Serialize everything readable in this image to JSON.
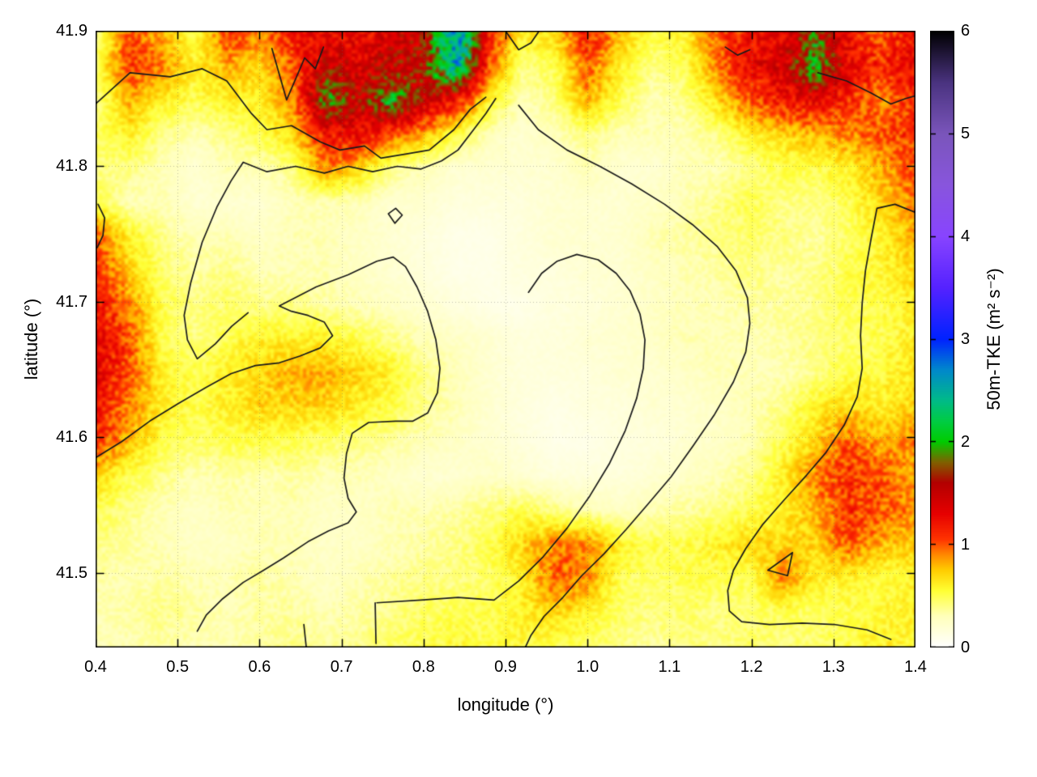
{
  "figure": {
    "xlabel": "longitude (°)",
    "ylabel": "latitude (°)",
    "colorbar_label": "50m-TKE (m² s⁻²)"
  },
  "axes": {
    "x": {
      "min": 0.4,
      "max": 1.4,
      "ticks": [
        0.4,
        0.5,
        0.6,
        0.7,
        0.8,
        0.9,
        1.0,
        1.1,
        1.2,
        1.3,
        1.4
      ],
      "tick_labels": [
        "0.4",
        "0.5",
        "0.6",
        "0.7",
        "0.8",
        "0.9",
        "1.0",
        "1.1",
        "1.2",
        "1.3",
        "1.4"
      ]
    },
    "y": {
      "min": 41.445,
      "max": 41.9,
      "ticks": [
        41.5,
        41.6,
        41.7,
        41.8,
        41.9
      ],
      "tick_labels": [
        "41.5",
        "41.6",
        "41.7",
        "41.8",
        "41.9"
      ]
    },
    "cb": {
      "min": 0,
      "max": 6,
      "ticks": [
        0,
        1,
        2,
        3,
        4,
        5,
        6
      ],
      "tick_labels": [
        "0",
        "1",
        "2",
        "3",
        "4",
        "5",
        "6"
      ]
    }
  },
  "chart_data": {
    "type": "heatmap",
    "title": "",
    "xlabel": "longitude (°)",
    "ylabel": "latitude (°)",
    "colorbar_label": "50m-TKE (m² s⁻²)",
    "x_range": [
      0.4,
      1.4
    ],
    "y_range": [
      41.445,
      41.9
    ],
    "value_range": [
      0,
      6
    ],
    "grid_note": "values rows ordered top (lat 41.9) to bottom (lat 41.445), columns lon 0.4 to 1.4",
    "values": [
      [
        0.4,
        1.0,
        0.8,
        0.5,
        1.1,
        0.9,
        1.2,
        1.3,
        1.2,
        1.4,
        1.5,
        2.8,
        1.2,
        0.6,
        0.7,
        1.2,
        0.8,
        0.5,
        0.6,
        1.0,
        1.2,
        1.3,
        1.8,
        1.2,
        1.0,
        1.2
      ],
      [
        0.5,
        1.1,
        0.9,
        0.6,
        0.8,
        0.7,
        1.0,
        1.5,
        1.4,
        1.5,
        1.6,
        2.5,
        1.0,
        0.4,
        0.5,
        1.0,
        0.6,
        0.4,
        0.5,
        0.9,
        1.3,
        1.4,
        2.0,
        1.3,
        1.1,
        1.3
      ],
      [
        0.4,
        0.8,
        0.6,
        0.5,
        0.6,
        0.6,
        0.9,
        1.9,
        1.5,
        2.0,
        1.5,
        1.2,
        0.6,
        0.3,
        0.4,
        0.8,
        0.5,
        0.3,
        0.4,
        0.7,
        1.0,
        1.2,
        1.3,
        1.1,
        0.9,
        1.1
      ],
      [
        0.5,
        0.6,
        0.4,
        0.3,
        0.4,
        0.5,
        0.7,
        1.2,
        1.3,
        1.0,
        0.8,
        0.5,
        0.3,
        0.2,
        0.3,
        0.4,
        0.3,
        0.3,
        0.3,
        0.4,
        0.6,
        0.7,
        0.8,
        0.9,
        1.0,
        1.1
      ],
      [
        0.4,
        0.4,
        0.3,
        0.2,
        0.3,
        0.3,
        0.4,
        0.9,
        0.7,
        0.4,
        0.3,
        0.2,
        0.2,
        0.2,
        0.2,
        0.3,
        0.2,
        0.2,
        0.3,
        0.3,
        0.4,
        0.5,
        0.5,
        0.6,
        0.8,
        1.0
      ],
      [
        0.5,
        0.3,
        0.3,
        0.2,
        0.2,
        0.2,
        0.3,
        0.3,
        0.3,
        0.2,
        0.2,
        0.15,
        0.15,
        0.15,
        0.2,
        0.2,
        0.2,
        0.25,
        0.3,
        0.4,
        0.5,
        0.4,
        0.4,
        0.5,
        0.7,
        0.9
      ],
      [
        1.0,
        0.6,
        0.4,
        0.3,
        0.3,
        0.25,
        0.3,
        0.3,
        0.25,
        0.2,
        0.15,
        0.1,
        0.1,
        0.15,
        0.2,
        0.2,
        0.2,
        0.3,
        0.35,
        0.4,
        0.45,
        0.4,
        0.35,
        0.45,
        0.6,
        0.8
      ],
      [
        1.1,
        0.7,
        0.45,
        0.35,
        0.4,
        0.3,
        0.3,
        0.3,
        0.25,
        0.2,
        0.15,
        0.1,
        0.1,
        0.15,
        0.15,
        0.2,
        0.2,
        0.25,
        0.3,
        0.35,
        0.4,
        0.35,
        0.4,
        0.5,
        0.55,
        0.7
      ],
      [
        1.2,
        0.9,
        0.5,
        0.4,
        0.45,
        0.4,
        0.4,
        0.35,
        0.3,
        0.25,
        0.2,
        0.15,
        0.1,
        0.1,
        0.15,
        0.15,
        0.2,
        0.25,
        0.3,
        0.3,
        0.35,
        0.35,
        0.4,
        0.5,
        0.5,
        0.6
      ],
      [
        1.3,
        1.0,
        0.5,
        0.4,
        0.5,
        0.6,
        0.6,
        0.6,
        0.5,
        0.4,
        0.3,
        0.25,
        0.2,
        0.15,
        0.15,
        0.2,
        0.2,
        0.25,
        0.3,
        0.3,
        0.3,
        0.35,
        0.4,
        0.45,
        0.5,
        0.6
      ],
      [
        1.3,
        1.0,
        0.6,
        0.5,
        0.6,
        0.7,
        0.8,
        0.8,
        0.7,
        0.6,
        0.4,
        0.3,
        0.2,
        0.15,
        0.15,
        0.15,
        0.2,
        0.2,
        0.25,
        0.3,
        0.3,
        0.3,
        0.4,
        0.5,
        0.55,
        0.65
      ],
      [
        1.2,
        0.9,
        0.6,
        0.5,
        0.6,
        0.7,
        0.7,
        0.7,
        0.6,
        0.5,
        0.4,
        0.3,
        0.2,
        0.15,
        0.1,
        0.15,
        0.15,
        0.2,
        0.2,
        0.25,
        0.3,
        0.4,
        0.6,
        0.7,
        0.6,
        0.7
      ],
      [
        1.1,
        0.8,
        0.5,
        0.45,
        0.5,
        0.5,
        0.5,
        0.45,
        0.4,
        0.35,
        0.3,
        0.25,
        0.2,
        0.15,
        0.1,
        0.1,
        0.15,
        0.15,
        0.2,
        0.25,
        0.3,
        0.5,
        0.7,
        1.0,
        0.8,
        0.9
      ],
      [
        0.7,
        0.5,
        0.4,
        0.3,
        0.35,
        0.3,
        0.35,
        0.3,
        0.3,
        0.25,
        0.2,
        0.2,
        0.25,
        0.2,
        0.15,
        0.15,
        0.15,
        0.2,
        0.25,
        0.3,
        0.4,
        0.6,
        0.9,
        1.1,
        1.0,
        0.8
      ],
      [
        0.5,
        0.4,
        0.3,
        0.25,
        0.3,
        0.3,
        0.3,
        0.25,
        0.25,
        0.3,
        0.3,
        0.35,
        0.4,
        0.5,
        0.4,
        0.3,
        0.25,
        0.3,
        0.35,
        0.4,
        0.5,
        0.6,
        0.8,
        1.1,
        1.0,
        0.9
      ],
      [
        0.4,
        0.35,
        0.3,
        0.25,
        0.25,
        0.3,
        0.3,
        0.25,
        0.25,
        0.3,
        0.35,
        0.4,
        0.5,
        0.7,
        0.9,
        0.9,
        0.6,
        0.5,
        0.5,
        0.6,
        0.7,
        0.7,
        0.7,
        1.0,
        0.8,
        0.7
      ],
      [
        0.35,
        0.3,
        0.35,
        0.3,
        0.3,
        0.35,
        0.3,
        0.25,
        0.3,
        0.35,
        0.4,
        0.4,
        0.45,
        0.6,
        1.0,
        0.9,
        0.5,
        0.45,
        0.5,
        0.5,
        0.5,
        0.9,
        0.6,
        0.6,
        0.5,
        0.6
      ],
      [
        0.3,
        0.35,
        0.4,
        0.35,
        0.3,
        0.35,
        0.35,
        0.3,
        0.35,
        0.4,
        0.45,
        0.5,
        0.5,
        0.6,
        0.7,
        0.6,
        0.45,
        0.4,
        0.45,
        0.4,
        0.45,
        0.5,
        0.45,
        0.5,
        0.55,
        0.6
      ],
      [
        0.3,
        0.3,
        0.35,
        0.3,
        0.3,
        0.35,
        0.4,
        0.35,
        0.4,
        0.45,
        0.5,
        0.55,
        0.5,
        0.55,
        0.5,
        0.45,
        0.4,
        0.35,
        0.4,
        0.4,
        0.45,
        0.4,
        0.45,
        0.5,
        0.6,
        0.55
      ]
    ],
    "palette": [
      [
        0.0,
        "#ffffff"
      ],
      [
        0.3,
        "#ffffbb"
      ],
      [
        0.55,
        "#ffff33"
      ],
      [
        0.75,
        "#ffcc00"
      ],
      [
        0.9,
        "#ff8800"
      ],
      [
        1.05,
        "#ff3300"
      ],
      [
        1.3,
        "#e60000"
      ],
      [
        1.6,
        "#b30000"
      ],
      [
        1.8,
        "#806000"
      ],
      [
        2.0,
        "#00cc00"
      ],
      [
        2.2,
        "#00cc44"
      ],
      [
        2.4,
        "#00bb88"
      ],
      [
        2.7,
        "#0088cc"
      ],
      [
        3.0,
        "#0022ff"
      ],
      [
        3.5,
        "#5522ff"
      ],
      [
        4.0,
        "#8844ff"
      ],
      [
        4.5,
        "#8855dd"
      ],
      [
        5.0,
        "#7a55bb"
      ],
      [
        5.5,
        "#4a3380"
      ],
      [
        6.0,
        "#000000"
      ]
    ],
    "contour_color": "#1a1a1a",
    "contours": [
      [
        [
          0.4,
          41.846
        ],
        [
          0.442,
          41.869
        ],
        [
          0.491,
          41.866
        ],
        [
          0.53,
          41.872
        ],
        [
          0.56,
          41.863
        ],
        [
          0.59,
          41.839
        ],
        [
          0.609,
          41.827
        ],
        [
          0.639,
          41.83
        ],
        [
          0.674,
          41.818
        ],
        [
          0.698,
          41.812
        ],
        [
          0.728,
          41.815
        ],
        [
          0.748,
          41.806
        ],
        [
          0.778,
          41.809
        ],
        [
          0.807,
          41.812
        ],
        [
          0.837,
          41.827
        ],
        [
          0.857,
          41.842
        ],
        [
          0.876,
          41.851
        ]
      ],
      [
        [
          0.888,
          41.85
        ],
        [
          0.876,
          41.839
        ],
        [
          0.861,
          41.827
        ],
        [
          0.842,
          41.812
        ],
        [
          0.822,
          41.804
        ],
        [
          0.797,
          41.798
        ],
        [
          0.768,
          41.8
        ],
        [
          0.738,
          41.796
        ],
        [
          0.708,
          41.8
        ],
        [
          0.679,
          41.795
        ],
        [
          0.644,
          41.8
        ],
        [
          0.609,
          41.796
        ],
        [
          0.58,
          41.803
        ],
        [
          0.565,
          41.789
        ],
        [
          0.548,
          41.77
        ],
        [
          0.53,
          41.744
        ],
        [
          0.516,
          41.714
        ],
        [
          0.508,
          41.69
        ],
        [
          0.512,
          41.672
        ],
        [
          0.524,
          41.658
        ],
        [
          0.546,
          41.669
        ],
        [
          0.566,
          41.682
        ],
        [
          0.586,
          41.692
        ]
      ],
      [
        [
          0.4,
          41.585
        ],
        [
          0.432,
          41.597
        ],
        [
          0.466,
          41.612
        ],
        [
          0.501,
          41.625
        ],
        [
          0.535,
          41.637
        ],
        [
          0.565,
          41.647
        ],
        [
          0.595,
          41.653
        ],
        [
          0.624,
          41.655
        ],
        [
          0.649,
          41.66
        ],
        [
          0.674,
          41.666
        ],
        [
          0.689,
          41.675
        ],
        [
          0.679,
          41.685
        ],
        [
          0.659,
          41.69
        ],
        [
          0.639,
          41.693
        ],
        [
          0.624,
          41.697
        ],
        [
          0.669,
          41.711
        ],
        [
          0.708,
          41.72
        ],
        [
          0.743,
          41.73
        ],
        [
          0.763,
          41.733
        ],
        [
          0.778,
          41.726
        ],
        [
          0.792,
          41.711
        ],
        [
          0.805,
          41.693
        ],
        [
          0.815,
          41.672
        ],
        [
          0.82,
          41.651
        ],
        [
          0.817,
          41.633
        ],
        [
          0.805,
          41.618
        ],
        [
          0.787,
          41.612
        ],
        [
          0.766,
          41.612
        ],
        [
          0.733,
          41.611
        ],
        [
          0.713,
          41.603
        ],
        [
          0.706,
          41.588
        ],
        [
          0.703,
          41.57
        ],
        [
          0.708,
          41.555
        ],
        [
          0.718,
          41.545
        ],
        [
          0.708,
          41.537
        ],
        [
          0.684,
          41.531
        ],
        [
          0.659,
          41.523
        ],
        [
          0.629,
          41.511
        ],
        [
          0.605,
          41.502
        ],
        [
          0.58,
          41.493
        ],
        [
          0.555,
          41.481
        ],
        [
          0.535,
          41.469
        ],
        [
          0.524,
          41.457
        ]
      ],
      [
        [
          0.916,
          41.845
        ],
        [
          0.94,
          41.827
        ],
        [
          0.975,
          41.812
        ],
        [
          1.015,
          41.8
        ],
        [
          1.054,
          41.787
        ],
        [
          1.094,
          41.772
        ],
        [
          1.128,
          41.757
        ],
        [
          1.158,
          41.741
        ],
        [
          1.181,
          41.723
        ],
        [
          1.195,
          41.703
        ],
        [
          1.198,
          41.684
        ],
        [
          1.193,
          41.663
        ],
        [
          1.178,
          41.641
        ],
        [
          1.155,
          41.617
        ],
        [
          1.129,
          41.594
        ],
        [
          1.102,
          41.571
        ],
        [
          1.074,
          41.551
        ],
        [
          1.047,
          41.532
        ],
        [
          1.02,
          41.514
        ],
        [
          0.993,
          41.498
        ],
        [
          0.97,
          41.482
        ],
        [
          0.947,
          41.468
        ],
        [
          0.931,
          41.454
        ],
        [
          0.924,
          41.445
        ]
      ],
      [
        [
          0.743,
          41.478
        ],
        [
          0.797,
          41.48
        ],
        [
          0.842,
          41.482
        ],
        [
          0.886,
          41.48
        ],
        [
          0.916,
          41.494
        ],
        [
          0.946,
          41.512
        ],
        [
          0.975,
          41.533
        ],
        [
          1.003,
          41.557
        ],
        [
          1.027,
          41.581
        ],
        [
          1.046,
          41.605
        ],
        [
          1.06,
          41.629
        ],
        [
          1.068,
          41.651
        ],
        [
          1.07,
          41.672
        ],
        [
          1.064,
          41.691
        ],
        [
          1.052,
          41.708
        ],
        [
          1.035,
          41.721
        ],
        [
          1.013,
          41.731
        ],
        [
          0.987,
          41.735
        ],
        [
          0.963,
          41.73
        ],
        [
          0.944,
          41.721
        ],
        [
          0.928,
          41.707
        ]
      ],
      [
        [
          0.741,
          41.478
        ],
        [
          0.742,
          41.448
        ]
      ],
      [
        [
          1.4,
          41.766
        ],
        [
          1.375,
          41.772
        ],
        [
          1.353,
          41.769
        ],
        [
          1.346,
          41.747
        ],
        [
          1.339,
          41.723
        ],
        [
          1.335,
          41.699
        ],
        [
          1.333,
          41.675
        ],
        [
          1.335,
          41.651
        ],
        [
          1.329,
          41.63
        ],
        [
          1.313,
          41.609
        ],
        [
          1.291,
          41.589
        ],
        [
          1.267,
          41.572
        ],
        [
          1.24,
          41.554
        ],
        [
          1.214,
          41.536
        ],
        [
          1.193,
          41.518
        ],
        [
          1.178,
          41.502
        ],
        [
          1.171,
          41.487
        ],
        [
          1.173,
          41.472
        ],
        [
          1.188,
          41.464
        ],
        [
          1.222,
          41.462
        ],
        [
          1.262,
          41.463
        ],
        [
          1.301,
          41.462
        ],
        [
          1.341,
          41.458
        ],
        [
          1.37,
          41.451
        ]
      ],
      [
        [
          0.757,
          41.765
        ],
        [
          0.766,
          41.769
        ],
        [
          0.774,
          41.764
        ],
        [
          0.765,
          41.758
        ],
        [
          0.757,
          41.765
        ]
      ],
      [
        [
          0.403,
          41.772
        ],
        [
          0.411,
          41.762
        ],
        [
          0.409,
          41.749
        ],
        [
          0.402,
          41.74
        ]
      ],
      [
        [
          0.901,
          41.899
        ],
        [
          0.916,
          41.886
        ],
        [
          0.931,
          41.891
        ],
        [
          0.94,
          41.899
        ]
      ],
      [
        [
          1.168,
          41.888
        ],
        [
          1.183,
          41.882
        ],
        [
          1.198,
          41.886
        ]
      ],
      [
        [
          1.281,
          41.869
        ],
        [
          1.316,
          41.863
        ],
        [
          1.346,
          41.854
        ],
        [
          1.37,
          41.846
        ],
        [
          1.388,
          41.85
        ],
        [
          1.4,
          41.852
        ]
      ],
      [
        [
          1.22,
          41.502
        ],
        [
          1.25,
          41.515
        ],
        [
          1.244,
          41.498
        ],
        [
          1.22,
          41.502
        ]
      ],
      [
        [
          0.654,
          41.462
        ],
        [
          0.657,
          41.445
        ]
      ],
      [
        [
          0.615,
          41.887
        ],
        [
          0.633,
          41.849
        ],
        [
          0.655,
          41.88
        ],
        [
          0.668,
          41.872
        ],
        [
          0.678,
          41.888
        ]
      ]
    ]
  }
}
